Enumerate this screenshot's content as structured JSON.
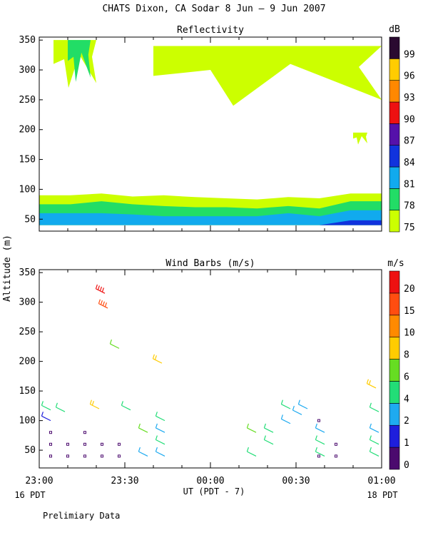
{
  "title": "CHATS Dixon, CA  Sodar   8 Jun –  9 Jun 2007",
  "footer_note": "Prelimiary Data",
  "x_axis": {
    "label": "UT  (PDT - 7)",
    "ticks": [
      "23:00",
      "23:30",
      "00:00",
      "00:30",
      "01:00"
    ],
    "sub_left": "16 PDT",
    "sub_right": "18 PDT"
  },
  "y_axis": {
    "label": "Altitude (m)"
  },
  "chart_data": [
    {
      "type": "heatmap",
      "title": "Reflectivity",
      "colorbar_unit": "dB",
      "colorbar_levels": [
        "75",
        "78",
        "81",
        "84",
        "87",
        "90",
        "93",
        "96",
        "99"
      ],
      "colorbar_colors": [
        "#ccff00",
        "#22dd66",
        "#11aaee",
        "#1133dd",
        "#5511aa",
        "#ee1111",
        "#ff8800",
        "#ffcc00",
        "#2a0a30"
      ],
      "xlim": [
        "23:00",
        "01:00"
      ],
      "y_ticks": [
        50,
        100,
        150,
        200,
        250,
        300,
        350
      ],
      "ylim": [
        30,
        355
      ],
      "layers": [
        {
          "level": "75",
          "alt_from": 40,
          "alt_to": [
            90,
            90,
            93,
            88,
            90,
            87,
            85,
            83,
            87,
            85,
            93,
            93
          ]
        },
        {
          "level": "78",
          "alt_from": 40,
          "alt_to": [
            75,
            75,
            80,
            75,
            72,
            70,
            70,
            68,
            72,
            68,
            80,
            80
          ]
        },
        {
          "level": "81",
          "alt_from": 40,
          "alt_to": [
            60,
            60,
            60,
            58,
            55,
            55,
            55,
            55,
            60,
            55,
            65,
            65
          ]
        },
        {
          "level": "84",
          "alt_from": 40,
          "alt_to": [
            40,
            40,
            40,
            40,
            40,
            40,
            40,
            40,
            40,
            40,
            48,
            48
          ]
        }
      ],
      "upper_echoes": [
        {
          "level": "75",
          "alt_range": [
            270,
            350
          ],
          "time_range": [
            "23:05",
            "23:20"
          ]
        },
        {
          "level": "78",
          "alt_range": [
            280,
            350
          ],
          "time_range": [
            "23:10",
            "23:18"
          ]
        },
        {
          "level": "75",
          "alt_range": [
            240,
            340
          ],
          "time_range": [
            "23:40",
            "01:00"
          ]
        },
        {
          "level": "75",
          "alt_range": [
            175,
            195
          ],
          "time_range": [
            "00:50",
            "00:55"
          ]
        }
      ]
    },
    {
      "type": "scatter",
      "title": "Wind Barbs (m/s)",
      "colorbar_unit": "m/s",
      "colorbar_levels": [
        "0",
        "1",
        "2",
        "4",
        "6",
        "8",
        "10",
        "15",
        "20"
      ],
      "colorbar_colors": [
        "#4b0a6e",
        "#1e1edc",
        "#1eaaf0",
        "#22dd77",
        "#66dd22",
        "#ffcc00",
        "#ff8a00",
        "#ff4d10",
        "#ee1111"
      ],
      "xlim": [
        "23:00",
        "01:00"
      ],
      "y_ticks": [
        50,
        100,
        150,
        200,
        250,
        300,
        350
      ],
      "ylim": [
        20,
        355
      ],
      "calm_points": [
        {
          "t": "23:04",
          "alt": 40
        },
        {
          "t": "23:04",
          "alt": 60
        },
        {
          "t": "23:04",
          "alt": 80
        },
        {
          "t": "23:10",
          "alt": 40
        },
        {
          "t": "23:10",
          "alt": 60
        },
        {
          "t": "23:16",
          "alt": 40
        },
        {
          "t": "23:16",
          "alt": 60
        },
        {
          "t": "23:16",
          "alt": 80
        },
        {
          "t": "23:22",
          "alt": 40
        },
        {
          "t": "23:22",
          "alt": 60
        },
        {
          "t": "23:28",
          "alt": 40
        },
        {
          "t": "23:28",
          "alt": 60
        },
        {
          "t": "00:38",
          "alt": 40
        },
        {
          "t": "00:38",
          "alt": 100
        },
        {
          "t": "00:44",
          "alt": 40
        },
        {
          "t": "00:44",
          "alt": 60
        }
      ],
      "barbs": [
        {
          "t": "23:04",
          "alt": 118,
          "speed": 5
        },
        {
          "t": "23:04",
          "alt": 100,
          "speed": 1.5
        },
        {
          "t": "23:09",
          "alt": 115,
          "speed": 5
        },
        {
          "t": "23:21",
          "alt": 120,
          "speed": 9
        },
        {
          "t": "23:23",
          "alt": 315,
          "speed": 20
        },
        {
          "t": "23:24",
          "alt": 290,
          "speed": 18
        },
        {
          "t": "23:28",
          "alt": 222,
          "speed": 6
        },
        {
          "t": "23:32",
          "alt": 118,
          "speed": 4
        },
        {
          "t": "23:38",
          "alt": 80,
          "speed": 6
        },
        {
          "t": "23:38",
          "alt": 40,
          "speed": 3
        },
        {
          "t": "23:43",
          "alt": 197,
          "speed": 9
        },
        {
          "t": "23:44",
          "alt": 100,
          "speed": 5
        },
        {
          "t": "23:44",
          "alt": 80,
          "speed": 3
        },
        {
          "t": "23:44",
          "alt": 60,
          "speed": 5
        },
        {
          "t": "23:44",
          "alt": 40,
          "speed": 3
        },
        {
          "t": "00:16",
          "alt": 80,
          "speed": 6
        },
        {
          "t": "00:16",
          "alt": 40,
          "speed": 5
        },
        {
          "t": "00:22",
          "alt": 80,
          "speed": 5
        },
        {
          "t": "00:22",
          "alt": 60,
          "speed": 5
        },
        {
          "t": "00:28",
          "alt": 95,
          "speed": 3
        },
        {
          "t": "00:28",
          "alt": 120,
          "speed": 5
        },
        {
          "t": "00:32",
          "alt": 110,
          "speed": 3
        },
        {
          "t": "00:34",
          "alt": 120,
          "speed": 3
        },
        {
          "t": "00:40",
          "alt": 80,
          "speed": 3
        },
        {
          "t": "00:40",
          "alt": 60,
          "speed": 4
        },
        {
          "t": "00:40",
          "alt": 40,
          "speed": 5
        },
        {
          "t": "00:58",
          "alt": 155,
          "speed": 9
        },
        {
          "t": "00:59",
          "alt": 115,
          "speed": 4
        },
        {
          "t": "00:59",
          "alt": 80,
          "speed": 3
        },
        {
          "t": "00:59",
          "alt": 60,
          "speed": 5
        },
        {
          "t": "00:59",
          "alt": 40,
          "speed": 5
        }
      ]
    }
  ]
}
